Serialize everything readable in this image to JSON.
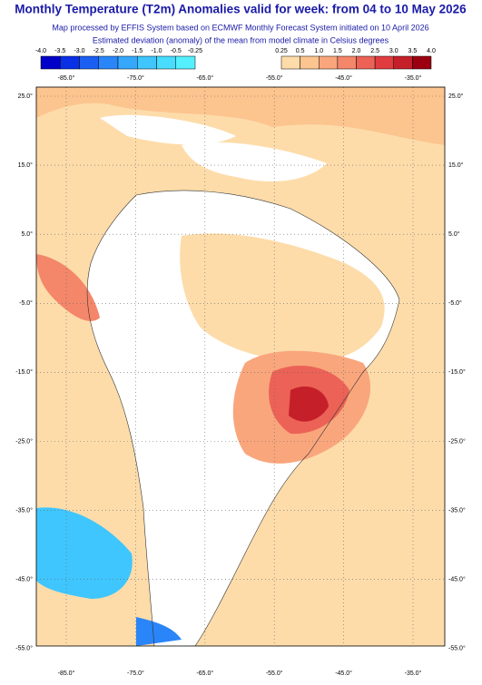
{
  "header": {
    "title": "Monthly Temperature (T2m) Anomalies valid for week: from 04 to 10 May 2026",
    "subtitle": "Map processed by EFFIS System based on ECMWF Monthly Forecast System initiated on 10 April 2026",
    "description": "Estimated deviation (anomaly) of the mean from model climate in Celsius degrees"
  },
  "legend": {
    "negative": {
      "labels": [
        "-4.0",
        "-3.5",
        "-3.0",
        "-2.5",
        "-2.0",
        "-1.5",
        "-1.0",
        "-0.5",
        "-0.25"
      ],
      "colors": [
        "#0000c8",
        "#0a30e6",
        "#1a5ff2",
        "#2a85f8",
        "#35a8fc",
        "#3fc6fe",
        "#48dcff",
        "#55f0ff"
      ]
    },
    "positive": {
      "labels": [
        "0.25",
        "0.5",
        "1.0",
        "1.5",
        "2.0",
        "2.5",
        "3.0",
        "3.5",
        "4.0"
      ],
      "colors": [
        "#fddcaa",
        "#fcc48e",
        "#f9a67c",
        "#f4866a",
        "#ec6256",
        "#e03c40",
        "#c5202a",
        "#9a0010"
      ]
    }
  },
  "map": {
    "lon_labels": [
      "-85.0°",
      "-75.0°",
      "-65.0°",
      "-55.0°",
      "-45.0°",
      "-35.0°"
    ],
    "lat_labels": [
      "25.0°",
      "15.0°",
      "5.0°",
      "-5.0°",
      "-15.0°",
      "-25.0°",
      "-35.0°",
      "-45.0°",
      "-55.0°"
    ]
  }
}
